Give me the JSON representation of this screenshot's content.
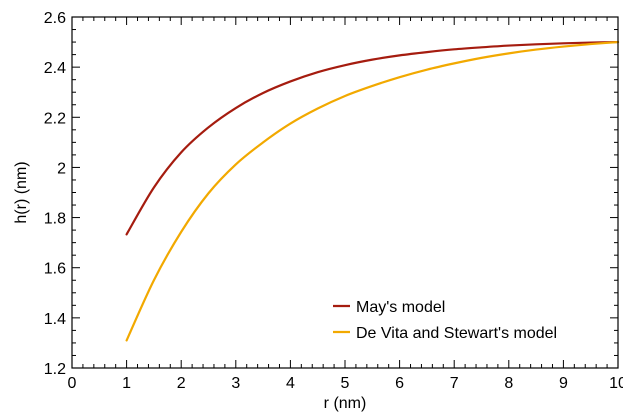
{
  "chart_data": {
    "type": "line",
    "title": "",
    "xlabel": "r (nm)",
    "ylabel": "h(r) (nm)",
    "xlim": [
      0,
      10
    ],
    "ylim": [
      1.2,
      2.6
    ],
    "xticks": [
      "0",
      "1",
      "2",
      "3",
      "4",
      "5",
      "6",
      "7",
      "8",
      "9",
      "10"
    ],
    "yticks": [
      "1.2",
      "1.4",
      "1.6",
      "1.8",
      "2",
      "2.2",
      "2.4",
      "2.6"
    ],
    "grid": false,
    "legend_position": "bottom-right",
    "series": [
      {
        "name": "May's model",
        "color": "#a51c0f",
        "x": [
          1,
          1.5,
          2,
          2.5,
          3,
          3.5,
          4,
          4.5,
          5,
          5.5,
          6,
          6.5,
          7,
          7.5,
          8,
          8.5,
          9,
          9.5,
          10
        ],
        "y": [
          1.733,
          1.92,
          2.06,
          2.16,
          2.237,
          2.297,
          2.343,
          2.38,
          2.408,
          2.43,
          2.447,
          2.46,
          2.471,
          2.479,
          2.486,
          2.491,
          2.495,
          2.498,
          2.5
        ]
      },
      {
        "name": "De Vita and Stewart's model",
        "color": "#f2a900",
        "x": [
          1,
          1.5,
          2,
          2.5,
          3,
          3.5,
          4,
          4.5,
          5,
          5.5,
          6,
          6.5,
          7,
          7.5,
          8,
          8.5,
          9,
          9.5,
          10
        ],
        "y": [
          1.31,
          1.55,
          1.743,
          1.897,
          2.012,
          2.1,
          2.175,
          2.235,
          2.285,
          2.325,
          2.36,
          2.39,
          2.415,
          2.437,
          2.455,
          2.47,
          2.482,
          2.492,
          2.5
        ]
      }
    ]
  }
}
